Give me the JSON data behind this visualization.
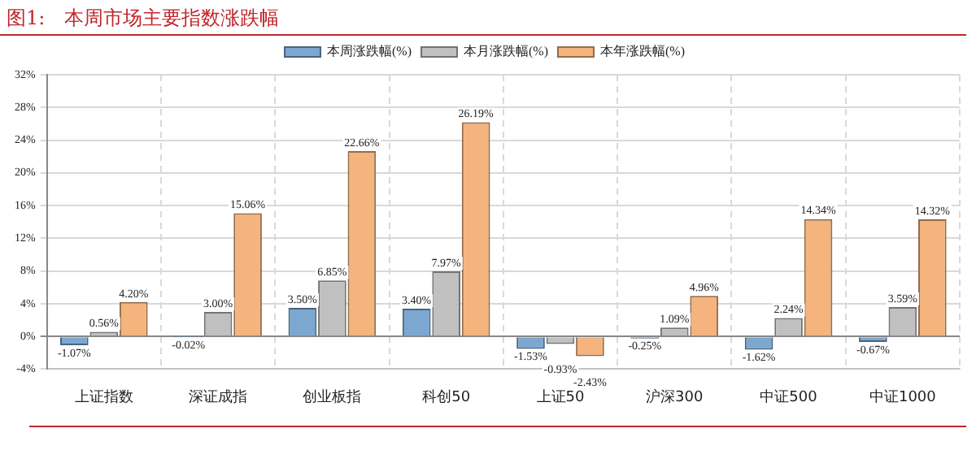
{
  "chart_data": {
    "type": "bar",
    "title": "图1:　本周市场主要指数涨跌幅",
    "categories": [
      "上证指数",
      "深证成指",
      "创业板指",
      "科创50",
      "上证50",
      "沪深300",
      "中证500",
      "中证1000"
    ],
    "series": [
      {
        "name": "本周涨跌幅(%)",
        "color": "#7ba7d0",
        "values": [
          -1.07,
          -0.02,
          3.5,
          3.4,
          -1.53,
          -0.25,
          -1.62,
          -0.67
        ],
        "value_labels": [
          "-1.07%",
          "-0.02%",
          "3.50%",
          "3.40%",
          "-1.53%",
          "-0.25%",
          "-1.62%",
          "-0.67%"
        ]
      },
      {
        "name": "本月涨跌幅(%)",
        "color": "#c0c0c0",
        "values": [
          0.56,
          3.0,
          6.85,
          7.97,
          -0.93,
          1.09,
          2.24,
          3.59
        ],
        "value_labels": [
          "0.56%",
          "3.00%",
          "6.85%",
          "7.97%",
          "-0.93%",
          "1.09%",
          "2.24%",
          "3.59%"
        ]
      },
      {
        "name": "本年涨跌幅(%)",
        "color": "#f5b47e",
        "values": [
          4.2,
          15.06,
          22.66,
          26.19,
          -2.43,
          4.96,
          14.34,
          14.32
        ],
        "value_labels": [
          "4.20%",
          "15.06%",
          "22.66%",
          "26.19%",
          "-2.43%",
          "4.96%",
          "14.34%",
          "14.32%"
        ]
      }
    ],
    "ylim": [
      -4,
      32
    ],
    "yticks": [
      {
        "value": -4,
        "label": "-4%"
      },
      {
        "value": 0,
        "label": "0%"
      },
      {
        "value": 4,
        "label": "4%"
      },
      {
        "value": 8,
        "label": "8%"
      },
      {
        "value": 12,
        "label": "12%"
      },
      {
        "value": 16,
        "label": "16%"
      },
      {
        "value": 20,
        "label": "20%"
      },
      {
        "value": 24,
        "label": "24%"
      },
      {
        "value": 28,
        "label": "28%"
      },
      {
        "value": 32,
        "label": "32%"
      }
    ],
    "grid": true,
    "legend": "top"
  }
}
